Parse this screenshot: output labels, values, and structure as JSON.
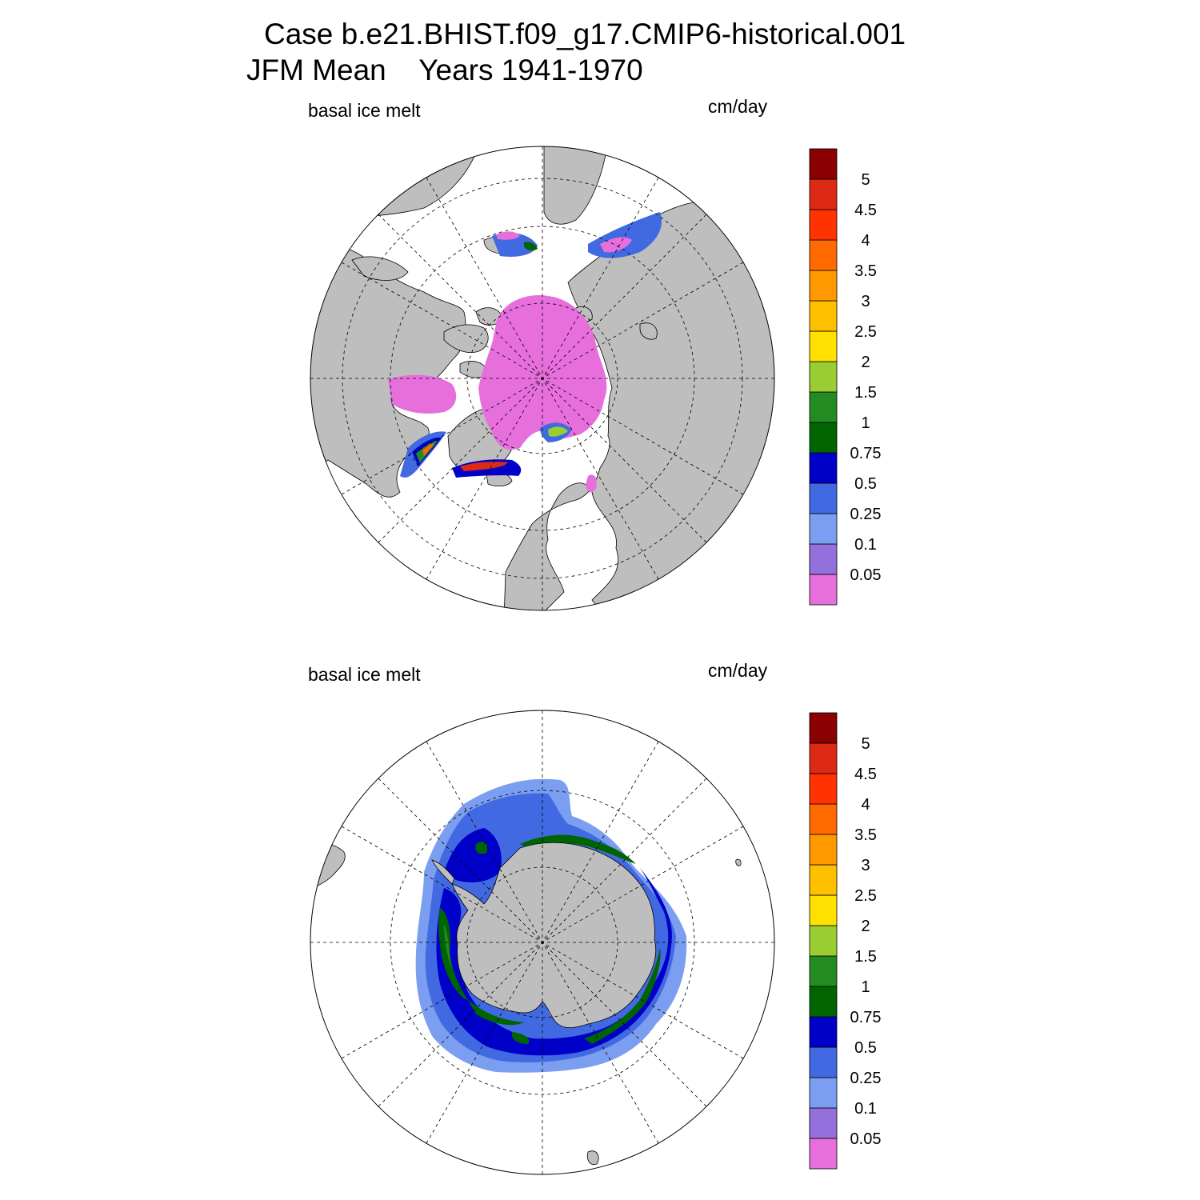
{
  "title": {
    "line1": "Case b.e21.BHIST.f09_g17.CMIP6-historical.001",
    "line2": "JFM Mean    Years 1941-1970"
  },
  "colors": {
    "land": "#bebebe",
    "background": "#ffffff"
  },
  "colorbar": {
    "levels": [
      "0.05",
      "0.1",
      "0.25",
      "0.5",
      "0.75",
      "1",
      "1.5",
      "2",
      "2.5",
      "3",
      "3.5",
      "4",
      "4.5",
      "5"
    ],
    "colors": [
      "#e66fdc",
      "#9370db",
      "#7b9ef0",
      "#4169e1",
      "#0000c8",
      "#006400",
      "#228b22",
      "#9acd32",
      "#ffe000",
      "#ffc000",
      "#ff9900",
      "#ff6a00",
      "#ff3300",
      "#dc2a14",
      "#8b0000"
    ]
  },
  "panels": [
    {
      "id": "north",
      "region": "Northern Hemisphere (Arctic)",
      "variable": "basal ice melt",
      "units": "cm/day"
    },
    {
      "id": "south",
      "region": "Southern Hemisphere (Antarctic)",
      "variable": "basal ice melt",
      "units": "cm/day"
    }
  ]
}
